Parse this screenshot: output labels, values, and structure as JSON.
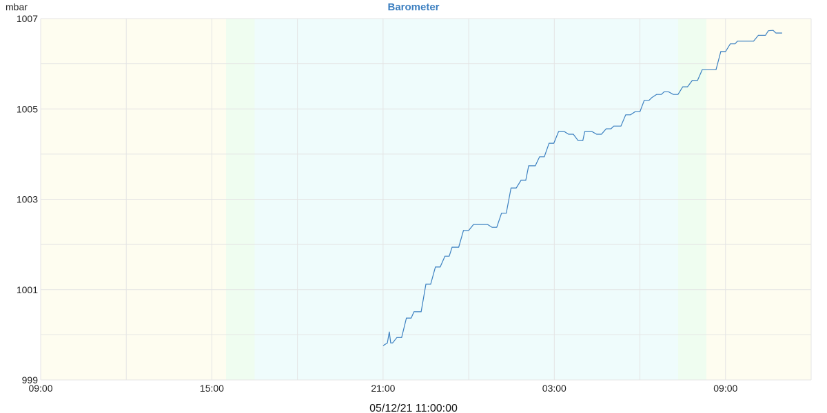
{
  "chart_data": {
    "type": "line",
    "title": "Barometer",
    "ylabel": "mbar",
    "xlabel": "05/12/21 11:00:00",
    "xlim": [
      "2021-05-11 09:00",
      "2021-05-12 12:00"
    ],
    "ylim": [
      999,
      1007
    ],
    "x_tick_labels": [
      "09:00",
      "15:00",
      "21:00",
      "03:00",
      "09:00"
    ],
    "y_tick_labels": [
      "999",
      "1001",
      "1003",
      "1005",
      "1007"
    ],
    "grid": true,
    "colors": {
      "line": "#3a7fc0",
      "day": "#fefdf0",
      "night": "#effcfc",
      "twilight": "#effdf0",
      "grid": "#e4e4e4",
      "title": "#3c7fc0"
    },
    "background_bands": [
      {
        "type": "day",
        "from": "2021-05-11 09:00",
        "to": "2021-05-11 15:30"
      },
      {
        "type": "twilight",
        "from": "2021-05-11 15:30",
        "to": "2021-05-11 16:30"
      },
      {
        "type": "night",
        "from": "2021-05-11 16:30",
        "to": "2021-05-12 07:20"
      },
      {
        "type": "twilight",
        "from": "2021-05-12 07:20",
        "to": "2021-05-12 08:20"
      },
      {
        "type": "day",
        "from": "2021-05-12 08:20",
        "to": "2021-05-12 12:00"
      }
    ],
    "series": [
      {
        "points": [
          [
            "2021-05-11 21:00",
            999.76
          ],
          [
            "2021-05-11 21:09",
            999.82
          ],
          [
            "2021-05-11 21:13",
            1000.07
          ],
          [
            "2021-05-11 21:16",
            999.82
          ],
          [
            "2021-05-11 21:20",
            999.82
          ],
          [
            "2021-05-11 21:29",
            999.94
          ],
          [
            "2021-05-11 21:39",
            999.94
          ],
          [
            "2021-05-11 21:49",
            1000.37
          ],
          [
            "2021-05-11 21:59",
            1000.37
          ],
          [
            "2021-05-11 22:05",
            1000.51
          ],
          [
            "2021-05-11 22:20",
            1000.51
          ],
          [
            "2021-05-11 22:30",
            1001.12
          ],
          [
            "2021-05-11 22:40",
            1001.12
          ],
          [
            "2021-05-11 22:50",
            1001.5
          ],
          [
            "2021-05-11 23:00",
            1001.5
          ],
          [
            "2021-05-11 23:10",
            1001.74
          ],
          [
            "2021-05-11 23:19",
            1001.74
          ],
          [
            "2021-05-11 23:25",
            1001.94
          ],
          [
            "2021-05-11 23:39",
            1001.94
          ],
          [
            "2021-05-11 23:49",
            1002.31
          ],
          [
            "2021-05-12 00:00",
            1002.31
          ],
          [
            "2021-05-12 00:10",
            1002.44
          ],
          [
            "2021-05-12 00:40",
            1002.44
          ],
          [
            "2021-05-12 00:49",
            1002.38
          ],
          [
            "2021-05-12 00:59",
            1002.38
          ],
          [
            "2021-05-12 01:09",
            1002.69
          ],
          [
            "2021-05-12 01:19",
            1002.69
          ],
          [
            "2021-05-12 01:29",
            1003.25
          ],
          [
            "2021-05-12 01:40",
            1003.25
          ],
          [
            "2021-05-12 01:50",
            1003.42
          ],
          [
            "2021-05-12 02:00",
            1003.42
          ],
          [
            "2021-05-12 02:06",
            1003.74
          ],
          [
            "2021-05-12 02:20",
            1003.74
          ],
          [
            "2021-05-12 02:29",
            1003.94
          ],
          [
            "2021-05-12 02:39",
            1003.94
          ],
          [
            "2021-05-12 02:49",
            1004.24
          ],
          [
            "2021-05-12 02:59",
            1004.24
          ],
          [
            "2021-05-12 03:09",
            1004.5
          ],
          [
            "2021-05-12 03:21",
            1004.5
          ],
          [
            "2021-05-12 03:30",
            1004.44
          ],
          [
            "2021-05-12 03:40",
            1004.44
          ],
          [
            "2021-05-12 03:50",
            1004.3
          ],
          [
            "2021-05-12 04:00",
            1004.3
          ],
          [
            "2021-05-12 04:04",
            1004.5
          ],
          [
            "2021-05-12 04:19",
            1004.5
          ],
          [
            "2021-05-12 04:29",
            1004.44
          ],
          [
            "2021-05-12 04:39",
            1004.44
          ],
          [
            "2021-05-12 04:49",
            1004.56
          ],
          [
            "2021-05-12 04:59",
            1004.56
          ],
          [
            "2021-05-12 05:05",
            1004.62
          ],
          [
            "2021-05-12 05:20",
            1004.62
          ],
          [
            "2021-05-12 05:30",
            1004.87
          ],
          [
            "2021-05-12 05:40",
            1004.87
          ],
          [
            "2021-05-12 05:50",
            1004.94
          ],
          [
            "2021-05-12 06:00",
            1004.94
          ],
          [
            "2021-05-12 06:09",
            1005.19
          ],
          [
            "2021-05-12 06:19",
            1005.19
          ],
          [
            "2021-05-12 06:25",
            1005.25
          ],
          [
            "2021-05-12 06:35",
            1005.32
          ],
          [
            "2021-05-12 06:45",
            1005.32
          ],
          [
            "2021-05-12 06:51",
            1005.38
          ],
          [
            "2021-05-12 07:00",
            1005.38
          ],
          [
            "2021-05-12 07:10",
            1005.32
          ],
          [
            "2021-05-12 07:20",
            1005.32
          ],
          [
            "2021-05-12 07:30",
            1005.49
          ],
          [
            "2021-05-12 07:40",
            1005.49
          ],
          [
            "2021-05-12 07:50",
            1005.63
          ],
          [
            "2021-05-12 08:01",
            1005.63
          ],
          [
            "2021-05-12 08:11",
            1005.87
          ],
          [
            "2021-05-12 08:40",
            1005.87
          ],
          [
            "2021-05-12 08:50",
            1006.27
          ],
          [
            "2021-05-12 09:00",
            1006.27
          ],
          [
            "2021-05-12 09:10",
            1006.44
          ],
          [
            "2021-05-12 09:20",
            1006.44
          ],
          [
            "2021-05-12 09:25",
            1006.5
          ],
          [
            "2021-05-12 09:59",
            1006.5
          ],
          [
            "2021-05-12 10:09",
            1006.63
          ],
          [
            "2021-05-12 10:24",
            1006.63
          ],
          [
            "2021-05-12 10:30",
            1006.73
          ],
          [
            "2021-05-12 10:40",
            1006.74
          ],
          [
            "2021-05-12 10:46",
            1006.68
          ],
          [
            "2021-05-12 10:59",
            1006.68
          ]
        ]
      }
    ]
  }
}
